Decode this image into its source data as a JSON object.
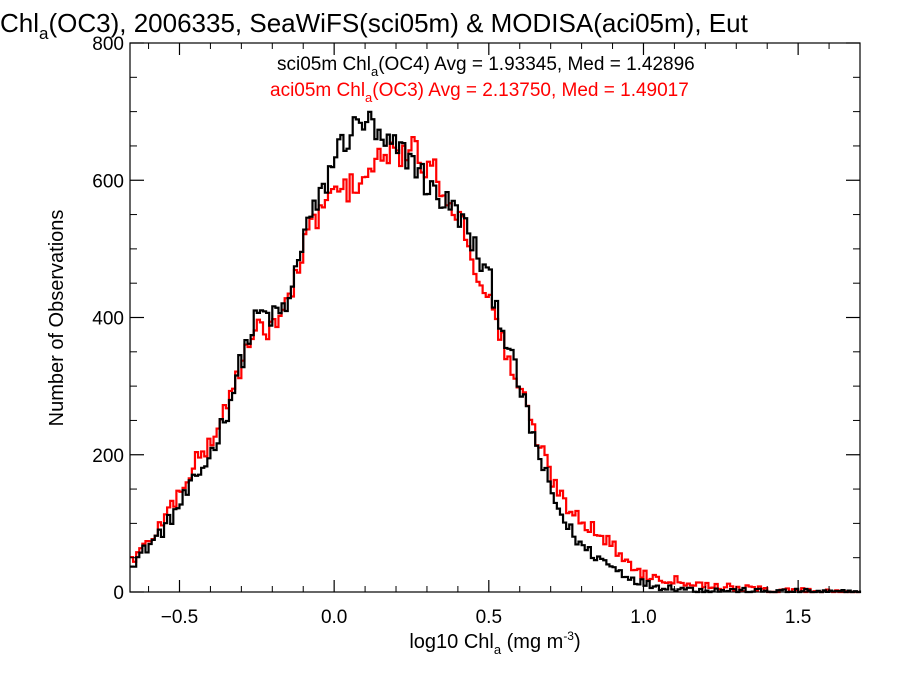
{
  "chart_data": {
    "type": "histogram",
    "title": {
      "pre": "Chl",
      "sub": "a",
      "post": "(OC3), 2006335, SeaWiFS(sci05m) & MODISA(aci05m), Eut"
    },
    "xlabel": {
      "pre": "log10 Chl",
      "sub": "a",
      "mid": " (mg m",
      "sup": "-3",
      "post": ")"
    },
    "ylabel": "Number of Observations",
    "xlim": [
      -0.66,
      1.7
    ],
    "ylim": [
      0,
      800
    ],
    "x_ticks": [
      {
        "value": -0.5,
        "label": "−0.5"
      },
      {
        "value": 0.0,
        "label": "0.0"
      },
      {
        "value": 0.5,
        "label": "0.5"
      },
      {
        "value": 1.0,
        "label": "1.0"
      },
      {
        "value": 1.5,
        "label": "1.5"
      }
    ],
    "y_ticks": [
      {
        "value": 0,
        "label": "0"
      },
      {
        "value": 200,
        "label": "200"
      },
      {
        "value": 400,
        "label": "400"
      },
      {
        "value": 600,
        "label": "600"
      },
      {
        "value": 800,
        "label": "800"
      }
    ],
    "x": [
      -0.65,
      -0.6,
      -0.55,
      -0.5,
      -0.45,
      -0.4,
      -0.35,
      -0.3,
      -0.25,
      -0.2,
      -0.15,
      -0.1,
      -0.05,
      0.0,
      0.05,
      0.1,
      0.15,
      0.2,
      0.25,
      0.3,
      0.35,
      0.4,
      0.45,
      0.5,
      0.55,
      0.6,
      0.65,
      0.7,
      0.75,
      0.8,
      0.85,
      0.9,
      0.95,
      1.0,
      1.05,
      1.1,
      1.15,
      1.2,
      1.3,
      1.4,
      1.5,
      1.6,
      1.7
    ],
    "series": [
      {
        "name": "sci05m",
        "legend": {
          "pre": "sci05m Chl",
          "sub": "a",
          "post": "(OC4) Avg = 1.93345, Med = 1.42896"
        },
        "color": "#000000",
        "values": [
          45,
          70,
          95,
          130,
          165,
          205,
          265,
          345,
          405,
          400,
          420,
          530,
          570,
          640,
          670,
          690,
          650,
          645,
          630,
          590,
          570,
          550,
          500,
          450,
          370,
          290,
          210,
          140,
          95,
          65,
          50,
          35,
          22,
          12,
          8,
          6,
          4,
          3,
          2,
          1,
          1,
          0,
          0
        ]
      },
      {
        "name": "aci05m",
        "legend": {
          "pre": "aci05m Chl",
          "sub": "a",
          "post": "(OC3) Avg = 2.13750, Med = 1.49017"
        },
        "color": "#ff0000",
        "values": [
          50,
          75,
          110,
          150,
          190,
          220,
          275,
          340,
          380,
          390,
          425,
          505,
          560,
          580,
          590,
          610,
          630,
          640,
          640,
          620,
          590,
          545,
          480,
          420,
          350,
          290,
          225,
          165,
          125,
          105,
          85,
          65,
          40,
          25,
          20,
          18,
          14,
          10,
          6,
          3,
          2,
          1,
          0
        ]
      }
    ]
  }
}
